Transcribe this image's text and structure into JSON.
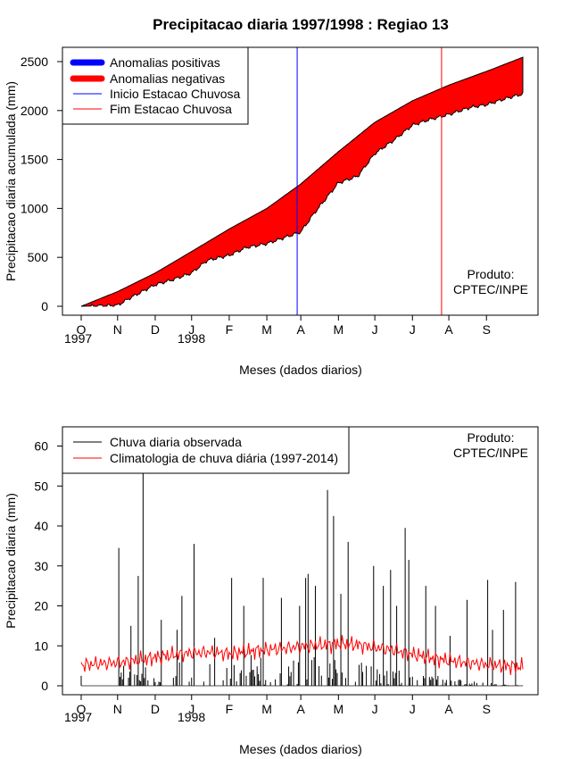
{
  "title": "Precipitacao diaria 1997/1998 : Regiao 13",
  "colors": {
    "positive": "#0000ff",
    "negative": "#ff0000",
    "start_line": "#0000ff",
    "end_line": "#ff0000",
    "observed": "#000000",
    "climatology": "#ff0000"
  },
  "chart_data": [
    {
      "type": "area",
      "ylabel": "Precipitacao diaria acumulada (mm)",
      "xlabel": "Meses (dados diarios)",
      "ylim": [
        0,
        2600
      ],
      "yticks": [
        0,
        500,
        1000,
        1500,
        2000,
        2500
      ],
      "month_ticks": [
        "O",
        "N",
        "D",
        "J",
        "F",
        "M",
        "A",
        "M",
        "J",
        "J",
        "A",
        "S"
      ],
      "year_labels": [
        "1997",
        "1998"
      ],
      "legend": [
        "Anomalias positivas",
        "Anomalias negativas",
        "Inicio Estacao Chuvosa",
        "Fim Estacao Chuvosa"
      ],
      "producer": [
        "Produto:",
        "CPTEC/INPE"
      ],
      "rainy_season_start_day": 178,
      "rainy_season_end_day": 297,
      "climatology_cumulative": {
        "day": [
          0,
          30,
          61,
          91,
          122,
          153,
          181,
          212,
          242,
          273,
          303,
          334,
          364
        ],
        "mm": [
          0,
          150,
          340,
          560,
          790,
          1000,
          1250,
          1580,
          1880,
          2100,
          2260,
          2400,
          2545
        ]
      },
      "observed_cumulative": {
        "day": [
          0,
          30,
          41,
          61,
          75,
          91,
          104,
          122,
          136,
          153,
          167,
          181,
          192,
          212,
          228,
          242,
          258,
          273,
          285,
          303,
          320,
          334,
          352,
          364
        ],
        "mm": [
          0,
          10,
          90,
          220,
          270,
          340,
          470,
          520,
          600,
          640,
          700,
          760,
          950,
          1260,
          1330,
          1560,
          1700,
          1850,
          1900,
          1960,
          2030,
          2060,
          2130,
          2170
        ]
      }
    },
    {
      "type": "line",
      "ylabel": "Precipitacao diaria (mm)",
      "xlabel": "Meses (dados diarios)",
      "ylim": [
        0,
        65
      ],
      "yticks": [
        0,
        10,
        20,
        30,
        40,
        50,
        60
      ],
      "month_ticks": [
        "O",
        "N",
        "D",
        "J",
        "F",
        "M",
        "A",
        "M",
        "J",
        "J",
        "A",
        "S"
      ],
      "year_labels": [
        "1997",
        "1998"
      ],
      "legend": [
        "Chuva diaria observada",
        "Climatologia de chuva diária (1997-2014)"
      ],
      "producer": [
        "Produto:",
        "CPTEC/INPE"
      ],
      "observed_peaks": {
        "day": [
          31,
          35,
          41,
          47,
          51,
          66,
          79,
          83,
          93,
          110,
          124,
          134,
          150,
          165,
          180,
          185,
          187,
          193,
          203,
          208,
          214,
          220,
          241,
          249,
          255,
          260,
          267,
          270,
          284,
          292,
          304,
          318,
          335,
          339,
          348,
          358
        ],
        "mm": [
          34.5,
          5,
          15,
          27.5,
          55,
          16.5,
          14,
          22.5,
          35.5,
          12,
          27,
          20,
          27,
          22,
          20,
          27,
          28,
          25,
          49,
          42.5,
          23,
          36,
          30,
          25,
          29,
          20,
          39.5,
          31.5,
          25,
          20,
          12.5,
          21.5,
          26.5,
          14,
          19,
          26
        ]
      },
      "climatology": {
        "day": [
          0,
          15,
          30,
          45,
          61,
          76,
          91,
          107,
          122,
          137,
          153,
          168,
          181,
          197,
          212,
          227,
          242,
          257,
          273,
          288,
          303,
          318,
          334,
          349,
          364
        ],
        "mm": [
          5.2,
          5.5,
          5.8,
          6.3,
          7.1,
          7.7,
          8.2,
          8.4,
          8.0,
          8.6,
          9.0,
          9.4,
          9.8,
          10.2,
          10.5,
          10.3,
          9.6,
          9.0,
          7.9,
          7.0,
          6.3,
          5.8,
          5.3,
          5.0,
          4.7
        ]
      }
    }
  ]
}
